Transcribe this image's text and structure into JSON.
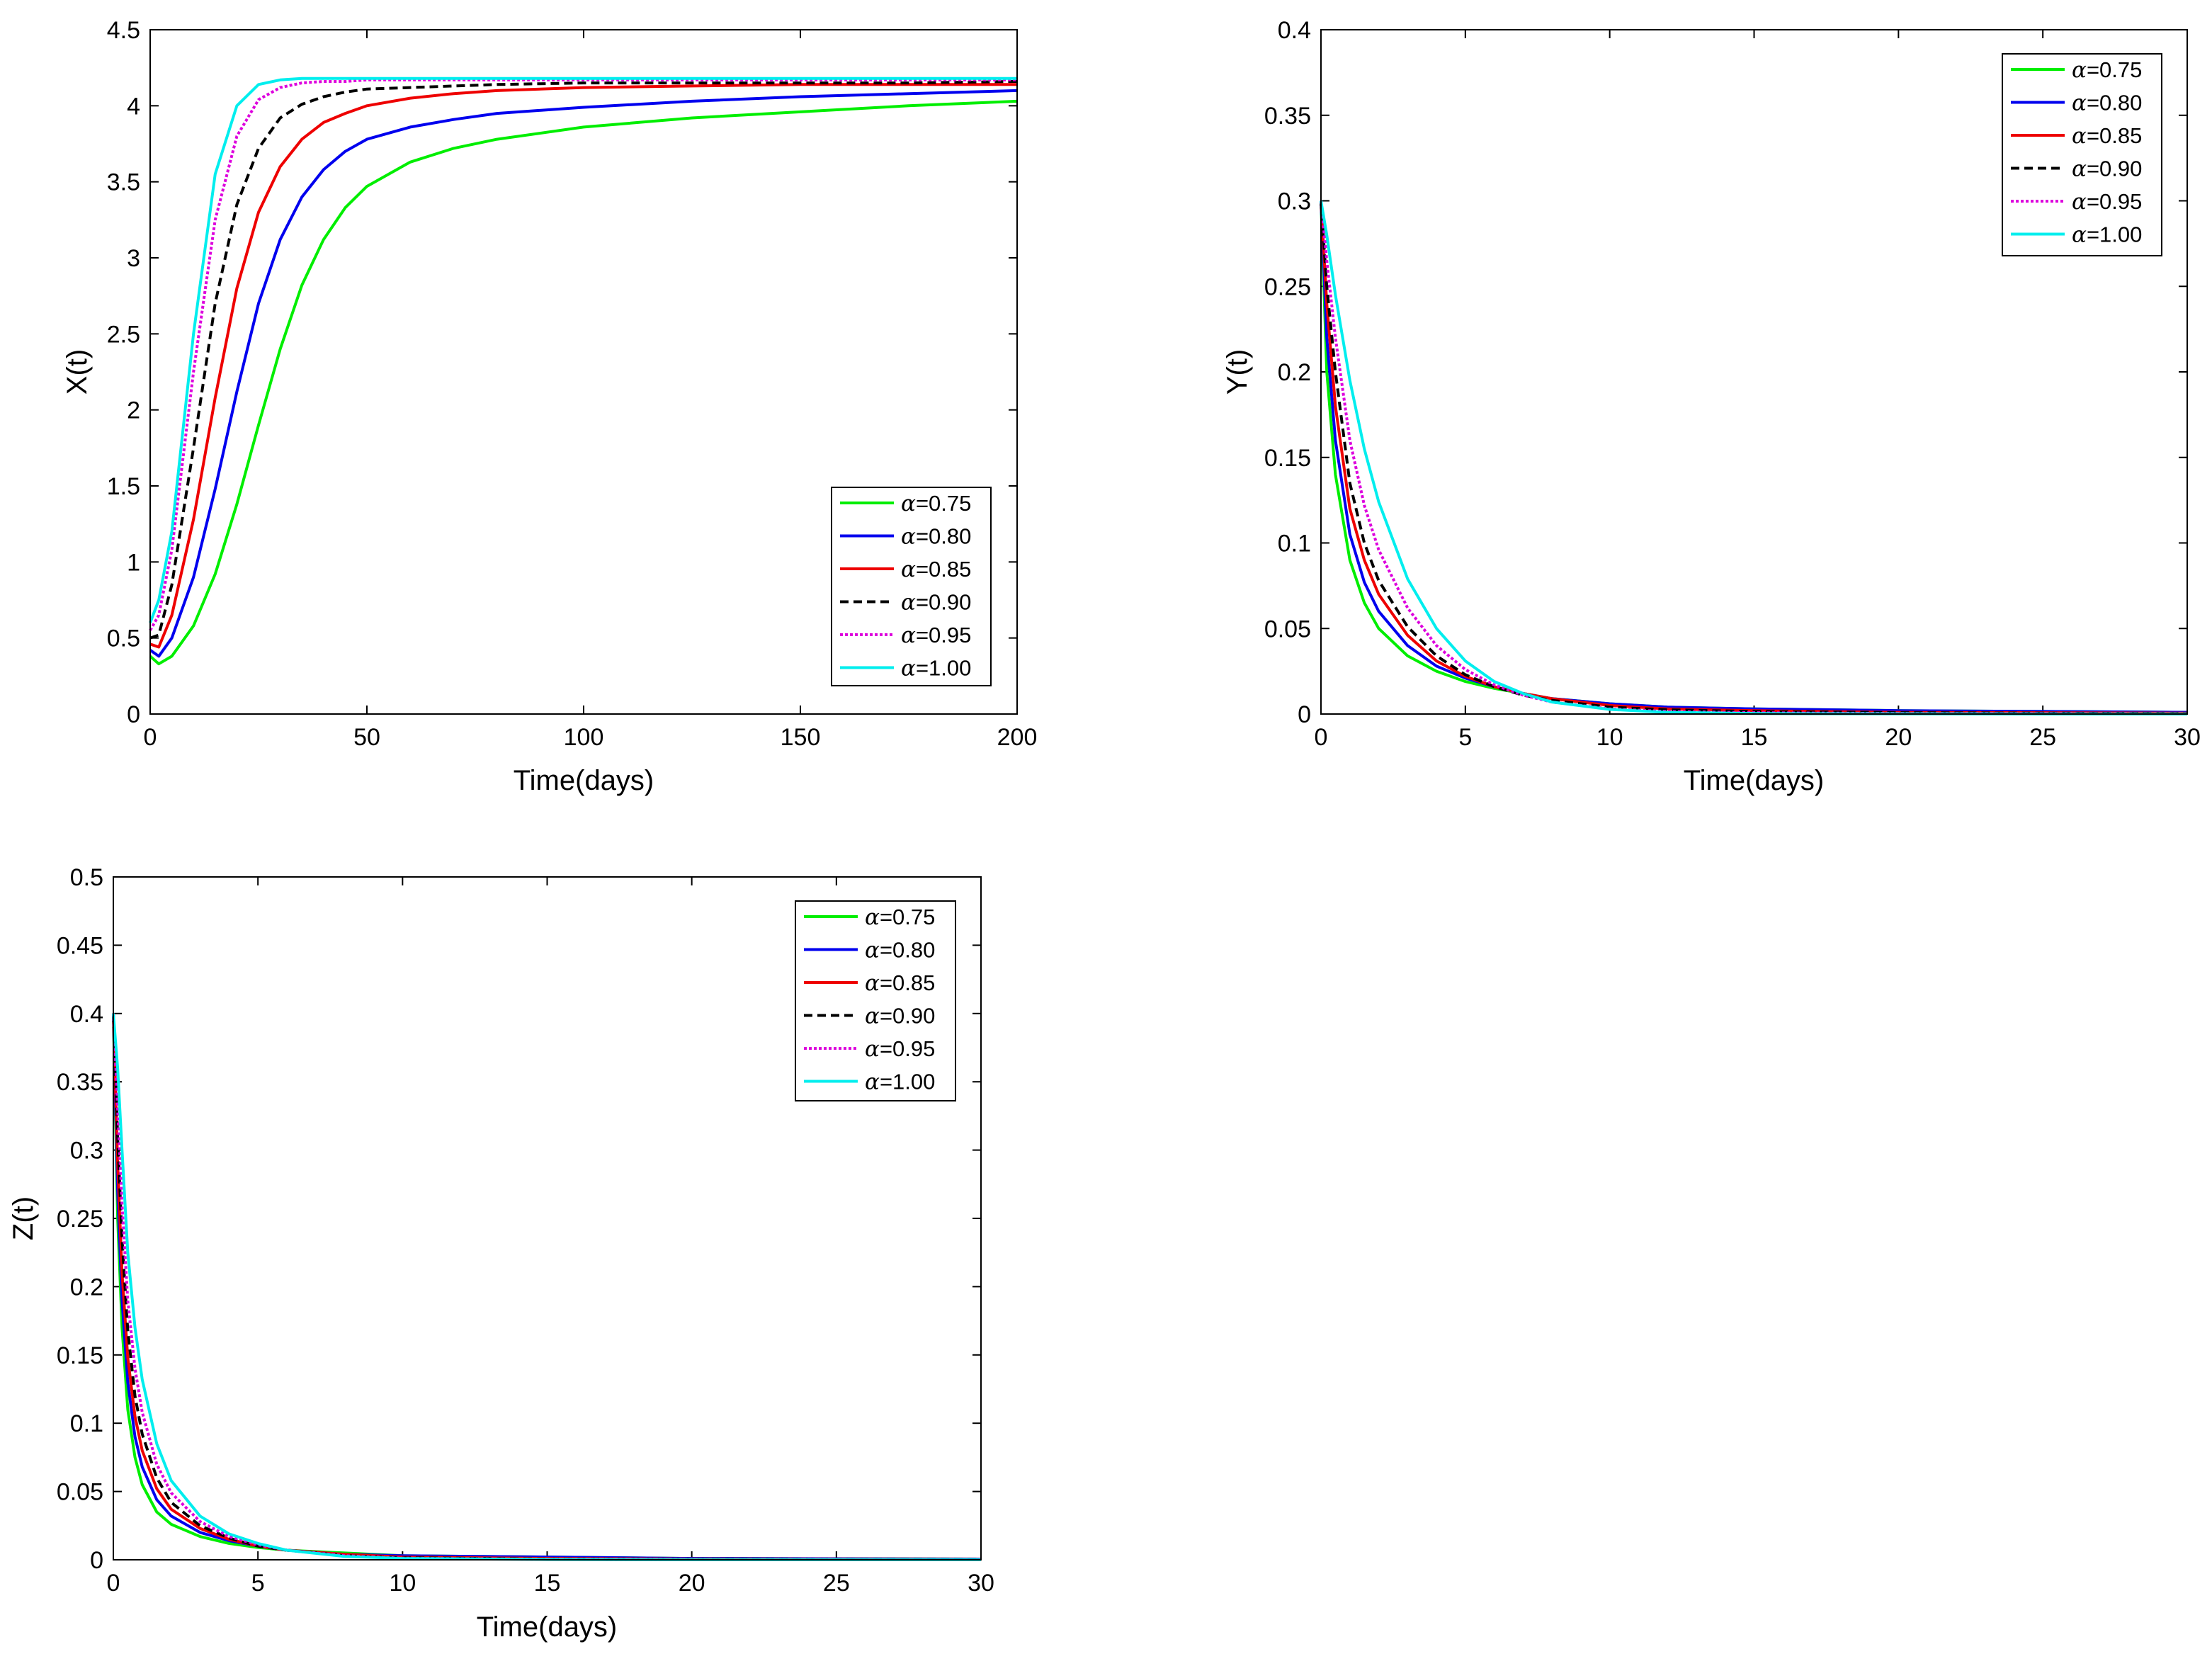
{
  "chart_data": [
    {
      "id": "x",
      "type": "line",
      "xlabel": "Time(days)",
      "ylabel": "X(t)",
      "xlim": [
        0,
        200
      ],
      "ylim": [
        0,
        4.5
      ],
      "xticks": [
        0,
        50,
        100,
        150,
        200
      ],
      "xtick_labels": [
        "0",
        "50",
        "100",
        "150",
        "200"
      ],
      "yticks": [
        0,
        0.5,
        1,
        1.5,
        2,
        2.5,
        3,
        3.5,
        4,
        4.5
      ],
      "ytick_labels": [
        "0",
        "0.5",
        "1",
        "1.5",
        "2",
        "2.5",
        "3",
        "3.5",
        "4",
        "4.5"
      ],
      "legend_position": "lower-right",
      "series": [
        {
          "alpha": "=0.75",
          "color": "#00ee00",
          "dash": "solid",
          "x": [
            0,
            2,
            5,
            10,
            15,
            20,
            25,
            30,
            35,
            40,
            45,
            50,
            60,
            70,
            80,
            100,
            125,
            150,
            175,
            200
          ],
          "y": [
            0.38,
            0.33,
            0.38,
            0.58,
            0.92,
            1.38,
            1.9,
            2.4,
            2.82,
            3.12,
            3.33,
            3.47,
            3.63,
            3.72,
            3.78,
            3.86,
            3.92,
            3.96,
            4.0,
            4.03
          ]
        },
        {
          "alpha": "=0.80",
          "color": "#0000ee",
          "dash": "solid",
          "x": [
            0,
            2,
            5,
            10,
            15,
            20,
            25,
            30,
            35,
            40,
            45,
            50,
            60,
            70,
            80,
            100,
            125,
            150,
            175,
            200
          ],
          "y": [
            0.42,
            0.38,
            0.5,
            0.9,
            1.48,
            2.12,
            2.7,
            3.12,
            3.4,
            3.58,
            3.7,
            3.78,
            3.86,
            3.91,
            3.95,
            3.99,
            4.03,
            4.06,
            4.08,
            4.1
          ]
        },
        {
          "alpha": "=0.85",
          "color": "#ee0000",
          "dash": "solid",
          "x": [
            0,
            2,
            5,
            10,
            15,
            20,
            25,
            30,
            35,
            40,
            45,
            50,
            60,
            70,
            80,
            100,
            125,
            150,
            175,
            200
          ],
          "y": [
            0.46,
            0.44,
            0.65,
            1.28,
            2.08,
            2.8,
            3.3,
            3.6,
            3.78,
            3.89,
            3.95,
            4.0,
            4.05,
            4.08,
            4.1,
            4.12,
            4.13,
            4.14,
            4.14,
            4.14
          ]
        },
        {
          "alpha": "=0.90",
          "color": "#000000",
          "dash": "dashed",
          "x": [
            0,
            2,
            5,
            10,
            15,
            20,
            25,
            30,
            35,
            40,
            45,
            50,
            60,
            70,
            80,
            100,
            125,
            150,
            175,
            200
          ],
          "y": [
            0.5,
            0.52,
            0.85,
            1.75,
            2.7,
            3.35,
            3.72,
            3.92,
            4.01,
            4.06,
            4.09,
            4.11,
            4.12,
            4.13,
            4.14,
            4.15,
            4.15,
            4.15,
            4.15,
            4.16
          ]
        },
        {
          "alpha": "=0.95",
          "color": "#dd00dd",
          "dash": "dotted",
          "x": [
            0,
            2,
            5,
            10,
            15,
            20,
            25,
            30,
            35,
            40,
            45,
            50,
            60,
            70,
            80,
            100,
            125,
            150,
            175,
            200
          ],
          "y": [
            0.55,
            0.65,
            1.08,
            2.25,
            3.25,
            3.8,
            4.04,
            4.12,
            4.15,
            4.16,
            4.16,
            4.17,
            4.17,
            4.17,
            4.17,
            4.17,
            4.17,
            4.17,
            4.17,
            4.17
          ]
        },
        {
          "alpha": "=1.00",
          "color": "#00eeee",
          "dash": "solid",
          "x": [
            0,
            2,
            5,
            10,
            15,
            20,
            25,
            30,
            35,
            40,
            45,
            50,
            60,
            70,
            80,
            100,
            125,
            150,
            175,
            200
          ],
          "y": [
            0.6,
            0.75,
            1.2,
            2.5,
            3.55,
            4.0,
            4.14,
            4.17,
            4.18,
            4.18,
            4.18,
            4.18,
            4.18,
            4.18,
            4.18,
            4.18,
            4.18,
            4.18,
            4.18,
            4.18
          ]
        }
      ]
    },
    {
      "id": "y",
      "type": "line",
      "xlabel": "Time(days)",
      "ylabel": "Y(t)",
      "xlim": [
        0,
        30
      ],
      "ylim": [
        0,
        0.4
      ],
      "xticks": [
        0,
        5,
        10,
        15,
        20,
        25,
        30
      ],
      "xtick_labels": [
        "0",
        "5",
        "10",
        "15",
        "20",
        "25",
        "30"
      ],
      "yticks": [
        0,
        0.05,
        0.1,
        0.15,
        0.2,
        0.25,
        0.3,
        0.35,
        0.4
      ],
      "ytick_labels": [
        "0",
        "0.05",
        "0.1",
        "0.15",
        "0.2",
        "0.25",
        "0.3",
        "0.35",
        "0.4"
      ],
      "legend_position": "top-right",
      "series": [
        {
          "alpha": "=0.75",
          "color": "#00ee00",
          "dash": "solid",
          "x": [
            0,
            0.2,
            0.5,
            1,
            1.5,
            2,
            3,
            4,
            5,
            6,
            7,
            8,
            10,
            12,
            15,
            20,
            25,
            30
          ],
          "y": [
            0.3,
            0.2,
            0.14,
            0.09,
            0.065,
            0.05,
            0.034,
            0.025,
            0.019,
            0.015,
            0.012,
            0.009,
            0.006,
            0.004,
            0.003,
            0.002,
            0.0015,
            0.001
          ]
        },
        {
          "alpha": "=0.80",
          "color": "#0000ee",
          "dash": "solid",
          "x": [
            0,
            0.2,
            0.5,
            1,
            1.5,
            2,
            3,
            4,
            5,
            6,
            7,
            8,
            10,
            12,
            15,
            20,
            25,
            30
          ],
          "y": [
            0.3,
            0.22,
            0.16,
            0.105,
            0.077,
            0.06,
            0.04,
            0.028,
            0.021,
            0.016,
            0.012,
            0.009,
            0.006,
            0.004,
            0.003,
            0.002,
            0.0015,
            0.001
          ]
        },
        {
          "alpha": "=0.85",
          "color": "#ee0000",
          "dash": "solid",
          "x": [
            0,
            0.2,
            0.5,
            1,
            1.5,
            2,
            3,
            4,
            5,
            6,
            7,
            8,
            10,
            12,
            15,
            20,
            25,
            30
          ],
          "y": [
            0.3,
            0.24,
            0.18,
            0.12,
            0.09,
            0.07,
            0.046,
            0.031,
            0.022,
            0.016,
            0.012,
            0.009,
            0.005,
            0.003,
            0.002,
            0.001,
            0.0008,
            0.0005
          ]
        },
        {
          "alpha": "=0.90",
          "color": "#000000",
          "dash": "dashed",
          "x": [
            0,
            0.2,
            0.5,
            1,
            1.5,
            2,
            3,
            4,
            5,
            6,
            7,
            8,
            10,
            12,
            15,
            20,
            25,
            30
          ],
          "y": [
            0.3,
            0.25,
            0.2,
            0.135,
            0.1,
            0.078,
            0.051,
            0.034,
            0.023,
            0.016,
            0.011,
            0.008,
            0.004,
            0.0025,
            0.0015,
            0.0008,
            0.0005,
            0.0003
          ]
        },
        {
          "alpha": "=0.95",
          "color": "#dd00dd",
          "dash": "dotted",
          "x": [
            0,
            0.2,
            0.5,
            1,
            1.5,
            2,
            3,
            4,
            5,
            6,
            7,
            8,
            10,
            12,
            15,
            20,
            25,
            30
          ],
          "y": [
            0.3,
            0.265,
            0.22,
            0.16,
            0.122,
            0.096,
            0.062,
            0.04,
            0.026,
            0.017,
            0.011,
            0.007,
            0.003,
            0.0015,
            0.0008,
            0.0003,
            0.0002,
            0.0001
          ]
        },
        {
          "alpha": "=1.00",
          "color": "#00eeee",
          "dash": "solid",
          "x": [
            0,
            0.2,
            0.5,
            1,
            1.5,
            2,
            3,
            4,
            5,
            6,
            7,
            8,
            10,
            12,
            15,
            20,
            25,
            30
          ],
          "y": [
            0.3,
            0.28,
            0.245,
            0.195,
            0.155,
            0.124,
            0.079,
            0.05,
            0.031,
            0.019,
            0.012,
            0.007,
            0.0027,
            0.001,
            0.0003,
            0.0001,
            0.0,
            0.0
          ]
        }
      ]
    },
    {
      "id": "z",
      "type": "line",
      "xlabel": "Time(days)",
      "ylabel": "Z(t)",
      "xlim": [
        0,
        30
      ],
      "ylim": [
        0,
        0.5
      ],
      "xticks": [
        0,
        5,
        10,
        15,
        20,
        25,
        30
      ],
      "xtick_labels": [
        "0",
        "5",
        "10",
        "15",
        "20",
        "25",
        "30"
      ],
      "yticks": [
        0,
        0.05,
        0.1,
        0.15,
        0.2,
        0.25,
        0.3,
        0.35,
        0.4,
        0.45,
        0.5
      ],
      "ytick_labels": [
        "0",
        "0.05",
        "0.1",
        "0.15",
        "0.2",
        "0.25",
        "0.3",
        "0.35",
        "0.4",
        "0.45",
        "0.5"
      ],
      "legend_position": "top-right",
      "series": [
        {
          "alpha": "=0.75",
          "color": "#00ee00",
          "dash": "solid",
          "x": [
            0,
            0.15,
            0.3,
            0.5,
            0.75,
            1,
            1.5,
            2,
            3,
            4,
            5,
            6,
            8,
            10,
            15,
            20,
            30
          ],
          "y": [
            0.4,
            0.25,
            0.17,
            0.11,
            0.075,
            0.055,
            0.035,
            0.026,
            0.017,
            0.012,
            0.009,
            0.007,
            0.005,
            0.003,
            0.002,
            0.001,
            0.0005
          ]
        },
        {
          "alpha": "=0.80",
          "color": "#0000ee",
          "dash": "solid",
          "x": [
            0,
            0.15,
            0.3,
            0.5,
            0.75,
            1,
            1.5,
            2,
            3,
            4,
            5,
            6,
            8,
            10,
            15,
            20,
            30
          ],
          "y": [
            0.4,
            0.27,
            0.19,
            0.13,
            0.09,
            0.068,
            0.044,
            0.032,
            0.02,
            0.014,
            0.01,
            0.007,
            0.004,
            0.003,
            0.002,
            0.001,
            0.0005
          ]
        },
        {
          "alpha": "=0.85",
          "color": "#ee0000",
          "dash": "solid",
          "x": [
            0,
            0.15,
            0.3,
            0.5,
            0.75,
            1,
            1.5,
            2,
            3,
            4,
            5,
            6,
            8,
            10,
            15,
            20,
            30
          ],
          "y": [
            0.4,
            0.29,
            0.21,
            0.148,
            0.105,
            0.08,
            0.052,
            0.037,
            0.023,
            0.015,
            0.01,
            0.007,
            0.004,
            0.002,
            0.001,
            0.0005,
            0.0002
          ]
        },
        {
          "alpha": "=0.90",
          "color": "#000000",
          "dash": "dashed",
          "x": [
            0,
            0.15,
            0.3,
            0.5,
            0.75,
            1,
            1.5,
            2,
            3,
            4,
            5,
            6,
            8,
            10,
            15,
            20,
            30
          ],
          "y": [
            0.4,
            0.31,
            0.235,
            0.168,
            0.12,
            0.092,
            0.06,
            0.042,
            0.025,
            0.016,
            0.01,
            0.007,
            0.003,
            0.0015,
            0.0005,
            0.0002,
            0.0001
          ]
        },
        {
          "alpha": "=0.95",
          "color": "#dd00dd",
          "dash": "dotted",
          "x": [
            0,
            0.15,
            0.3,
            0.5,
            0.75,
            1,
            1.5,
            2,
            3,
            4,
            5,
            6,
            8,
            10,
            15,
            20,
            30
          ],
          "y": [
            0.4,
            0.33,
            0.26,
            0.19,
            0.14,
            0.108,
            0.07,
            0.049,
            0.028,
            0.017,
            0.011,
            0.007,
            0.003,
            0.0012,
            0.0003,
            0.0001,
            0.0
          ]
        },
        {
          "alpha": "=1.00",
          "color": "#00eeee",
          "dash": "solid",
          "x": [
            0,
            0.15,
            0.3,
            0.5,
            0.75,
            1,
            1.5,
            2,
            3,
            4,
            5,
            6,
            8,
            10,
            15,
            20,
            30
          ],
          "y": [
            0.4,
            0.36,
            0.3,
            0.225,
            0.17,
            0.132,
            0.085,
            0.058,
            0.032,
            0.019,
            0.012,
            0.007,
            0.0025,
            0.001,
            0.0002,
            0.0,
            0.0
          ]
        }
      ]
    }
  ]
}
